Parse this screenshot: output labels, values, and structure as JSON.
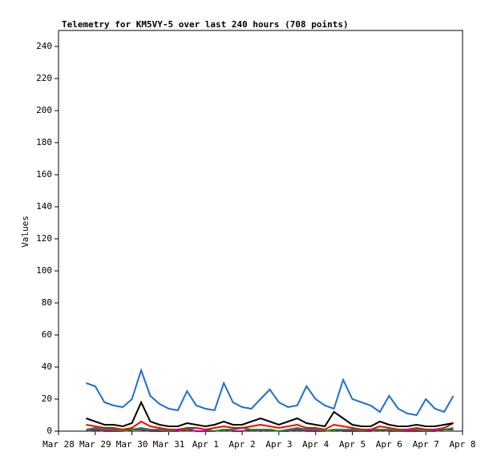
{
  "chart_data": {
    "type": "line",
    "title": "Telemetry for KM5VY-5 over last 240 hours (708 points)",
    "y_label": "Values",
    "x": [
      0.75,
      1.0,
      1.25,
      1.5,
      1.75,
      2.0,
      2.25,
      2.5,
      2.75,
      3.0,
      3.25,
      3.5,
      3.75,
      4.0,
      4.25,
      4.5,
      4.75,
      5.0,
      5.25,
      5.5,
      5.75,
      6.0,
      6.25,
      6.5,
      6.75,
      7.0,
      7.25,
      7.5,
      7.75,
      8.0,
      8.25,
      8.5,
      8.75,
      9.0,
      9.25,
      9.5,
      9.75,
      10.0,
      10.25,
      10.5,
      10.75
    ],
    "series": [
      {
        "color": "#1e6fd0",
        "values": [
          30,
          28,
          18,
          16,
          15,
          20,
          38,
          22,
          17,
          14,
          13,
          25,
          16,
          14,
          13,
          30,
          18,
          15,
          14,
          20,
          26,
          18,
          15,
          16,
          28,
          20,
          16,
          14,
          32,
          20,
          18,
          16,
          12,
          22,
          14,
          11,
          10,
          20,
          14,
          12,
          22
        ]
      },
      {
        "color": "#000000",
        "values": [
          8,
          6,
          4,
          4,
          3,
          5,
          18,
          6,
          4,
          3,
          3,
          5,
          4,
          3,
          4,
          6,
          4,
          4,
          6,
          8,
          6,
          4,
          6,
          8,
          5,
          4,
          3,
          12,
          8,
          4,
          3,
          3,
          6,
          4,
          3,
          3,
          4,
          3,
          3,
          4,
          5
        ]
      },
      {
        "color": "#ff0000",
        "values": [
          4,
          3,
          2,
          2,
          1,
          2,
          6,
          3,
          2,
          1,
          1,
          2,
          2,
          1,
          2,
          3,
          2,
          2,
          3,
          4,
          3,
          2,
          3,
          4,
          2,
          2,
          1,
          4,
          3,
          2,
          1,
          1,
          3,
          2,
          1,
          1,
          2,
          1,
          1,
          2,
          5
        ]
      },
      {
        "color": "#00a000",
        "values": [
          1,
          2,
          1,
          1,
          0,
          1,
          2,
          1,
          1,
          0,
          1,
          1,
          2,
          1,
          0,
          1,
          1,
          2,
          1,
          1,
          1,
          0,
          1,
          2,
          1,
          1,
          0,
          1,
          1,
          1,
          0,
          1,
          1,
          1,
          0,
          1,
          1,
          0,
          1,
          1,
          2
        ]
      },
      {
        "color": "#9900cc",
        "values": [
          0,
          1,
          0,
          0,
          0,
          1,
          1,
          0,
          0,
          0,
          0,
          1,
          0,
          0,
          0,
          1,
          0,
          0,
          1,
          0,
          1,
          0,
          0,
          1,
          0,
          0,
          0,
          1,
          0,
          0,
          0,
          0,
          1,
          0,
          0,
          0,
          0,
          0,
          0,
          1,
          1
        ]
      }
    ],
    "xlim": [
      0,
      11
    ],
    "xticks": [
      {
        "value": 0,
        "label": "Mar 28"
      },
      {
        "value": 1,
        "label": "Mar 29"
      },
      {
        "value": 2,
        "label": "Mar 30"
      },
      {
        "value": 3,
        "label": "Mar 31"
      },
      {
        "value": 4,
        "label": "Apr 1"
      },
      {
        "value": 5,
        "label": "Apr 2"
      },
      {
        "value": 6,
        "label": "Apr 3"
      },
      {
        "value": 7,
        "label": "Apr 4"
      },
      {
        "value": 8,
        "label": "Apr 5"
      },
      {
        "value": 9,
        "label": "Apr 6"
      },
      {
        "value": 10,
        "label": "Apr 7"
      },
      {
        "value": 11,
        "label": "Apr 8"
      }
    ],
    "ylim": [
      0,
      250
    ],
    "yticks": [
      0,
      20,
      40,
      60,
      80,
      100,
      120,
      140,
      160,
      180,
      200,
      220,
      240
    ],
    "grid": false
  }
}
